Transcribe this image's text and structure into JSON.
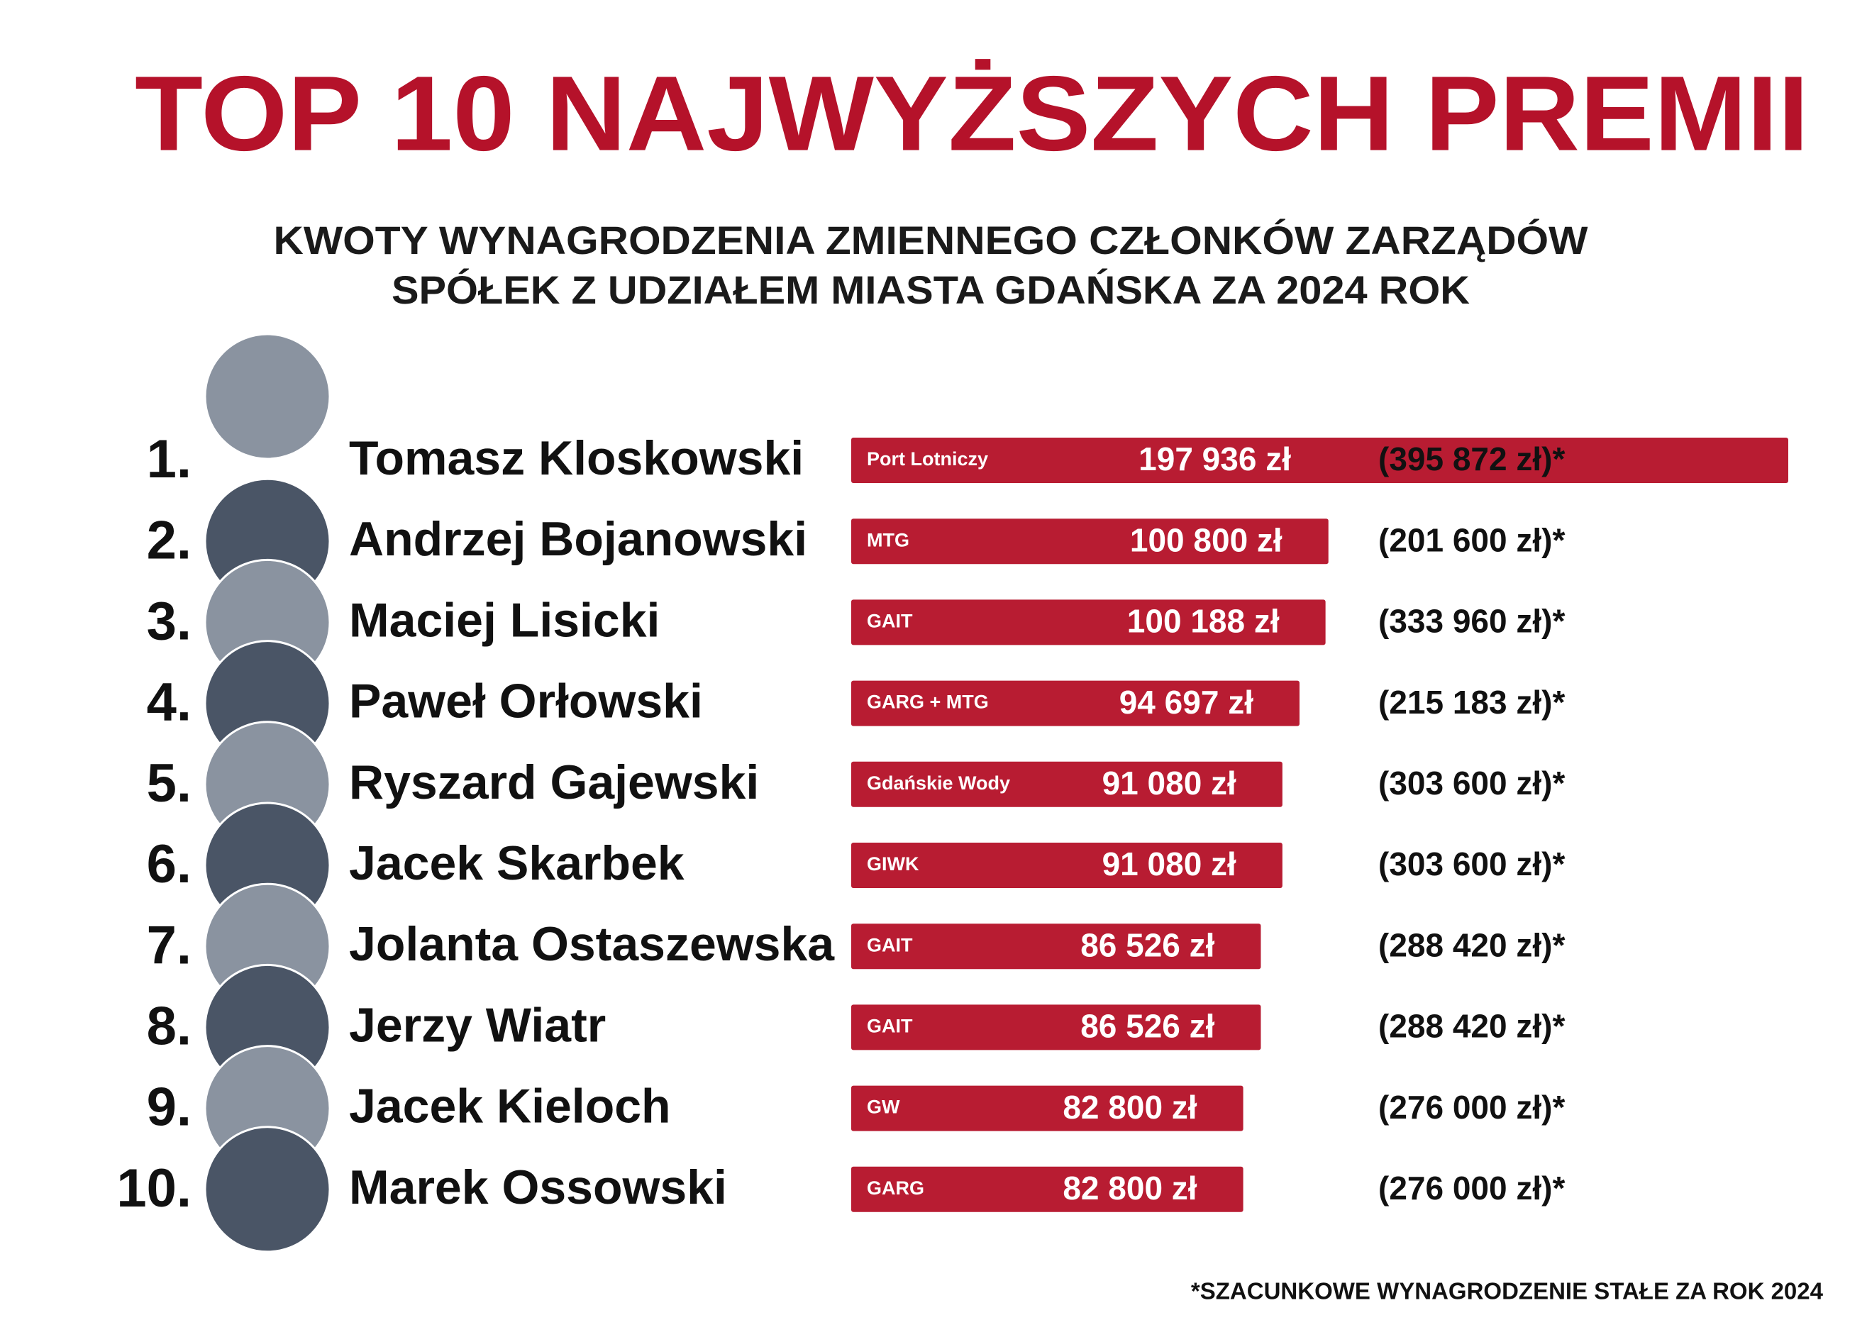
{
  "chart_data": {
    "type": "bar",
    "title": "TOP 10 NAJWYŻSZYCH PREMII",
    "subtitle": [
      "KWOTY WYNAGRODZENIA ZMIENNEGO CZŁONKÓW ZARZĄDÓW",
      "SPÓŁEK Z UDZIAŁEM MIASTA GDAŃSKA ZA 2024 ROK"
    ],
    "ranks": [
      "1.",
      "2.",
      "3.",
      "4.",
      "5.",
      "6.",
      "7.",
      "8.",
      "9.",
      "10."
    ],
    "categories": [
      "Tomasz Kloskowski",
      "Andrzej Bojanowski",
      "Maciej Lisicki",
      "Paweł Orłowski",
      "Ryszard Gajewski",
      "Jacek Skarbek",
      "Jolanta Ostaszewska",
      "Jerzy Wiatr",
      "Jacek Kieloch",
      "Marek Ossowski"
    ],
    "companies": [
      "Port Lotniczy",
      "MTG",
      "GAIT",
      "GARG + MTG",
      "Gdańskie Wody",
      "GIWK",
      "GAIT",
      "GAIT",
      "GW",
      "GARG"
    ],
    "values": [
      197936,
      100800,
      100188,
      94697,
      91080,
      91080,
      86526,
      86526,
      82800,
      82800
    ],
    "value_labels": [
      "197 936 zł",
      "100 800 zł",
      "100 188 zł",
      "94 697 zł",
      "91 080 zł",
      "91 080 zł",
      "86 526 zł",
      "86 526 zł",
      "82 800 zł",
      "82 800 zł"
    ],
    "fixed_salary_labels": [
      "(395 872 zł)*",
      "(201 600 zł)*",
      "(333 960 zł)*",
      "(215 183 zł)*",
      "(303 600 zł)*",
      "(303 600 zł)*",
      "(288 420 zł)*",
      "(288 420 zł)*",
      "(276 000 zł)*",
      "(276 000 zł)*"
    ],
    "color": "#b81c32",
    "footnote": "*SZACUNKOWE WYNAGRODZENIE STAŁE ZA ROK 2024"
  }
}
